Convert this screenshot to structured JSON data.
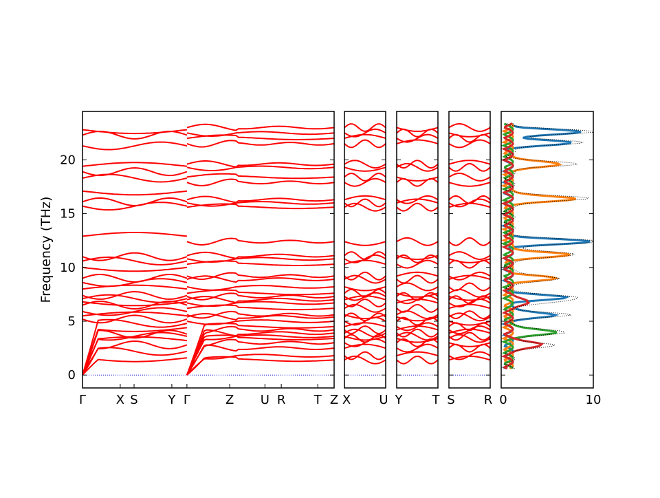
{
  "chart_data": {
    "type": "line",
    "ylabel": "Frequency (THz)",
    "ylim": [
      -1.2,
      24.5
    ],
    "yticks": [
      0,
      5,
      10,
      15,
      20
    ],
    "grid": false,
    "colors": {
      "bands": "#ff0000",
      "zero_line": "#0000cc",
      "dos_total": "#000000",
      "dos_partial": [
        "#1f77b4",
        "#ff7f0e",
        "#2ca02c",
        "#d62728"
      ]
    },
    "panels": [
      {
        "name": "band-panel-main",
        "xticks": [
          "Γ",
          "X",
          "S",
          "Y",
          "Γ",
          "Z",
          "U",
          "R",
          "T",
          "Z"
        ],
        "xtick_positions": [
          0,
          0.15,
          0.205,
          0.355,
          0.415,
          0.585,
          0.725,
          0.79,
          0.935,
          1.0
        ]
      },
      {
        "name": "band-panel-xu",
        "xticks": [
          "X",
          "U"
        ],
        "xtick_positions": [
          0,
          1
        ]
      },
      {
        "name": "band-panel-yt",
        "xticks": [
          "Y",
          "T"
        ],
        "xtick_positions": [
          0,
          1
        ]
      },
      {
        "name": "band-panel-sr",
        "xticks": [
          "S",
          "R"
        ],
        "xtick_positions": [
          0,
          1
        ]
      },
      {
        "name": "dos-panel",
        "xticks": [
          "0",
          "10"
        ],
        "xlim": [
          0,
          10
        ]
      }
    ],
    "band_levels_at_zone_edge_thz": [
      1.4,
      1.8,
      2.5,
      3.0,
      3.4,
      3.6,
      3.9,
      4.2,
      4.5,
      5.0,
      5.4,
      5.6,
      6.2,
      6.7,
      7.0,
      7.3,
      7.6,
      8.2,
      8.9,
      9.2,
      10.3,
      10.8,
      11.1,
      12.4,
      15.6,
      16.0,
      16.3,
      17.9,
      18.4,
      19.3,
      19.6,
      21.5,
      22.0,
      22.5,
      23.0
    ],
    "band_levels_gamma_to_y_thz": [
      1.6,
      2.2,
      2.8,
      3.2,
      3.6,
      3.8,
      4.4,
      4.8,
      5.2,
      5.5,
      5.9,
      6.5,
      6.8,
      7.1,
      7.4,
      8.0,
      8.6,
      9.0,
      10.0,
      10.6,
      11.0,
      12.9,
      15.7,
      16.1,
      17.1,
      18.3,
      18.9,
      19.4,
      21.3,
      22.3,
      22.8
    ],
    "dos_peaks": [
      {
        "series": 1,
        "x": 8.8,
        "y": 22.6
      },
      {
        "series": 1,
        "x": 7.6,
        "y": 21.6
      },
      {
        "series": 2,
        "x": 7.0,
        "y": 19.6
      },
      {
        "series": 2,
        "x": 8.6,
        "y": 16.4
      },
      {
        "series": 1,
        "x": 9.9,
        "y": 12.4
      },
      {
        "series": 2,
        "x": 7.5,
        "y": 11.2
      },
      {
        "series": 2,
        "x": 5.5,
        "y": 9.0
      },
      {
        "series": 1,
        "x": 6.9,
        "y": 7.2
      },
      {
        "series": 1,
        "x": 6.0,
        "y": 5.6
      },
      {
        "series": 3,
        "x": 6.4,
        "y": 4.0
      },
      {
        "series": 4,
        "x": 4.7,
        "y": 2.8
      },
      {
        "series": 4,
        "x": 3.0,
        "y": 6.8
      }
    ]
  }
}
